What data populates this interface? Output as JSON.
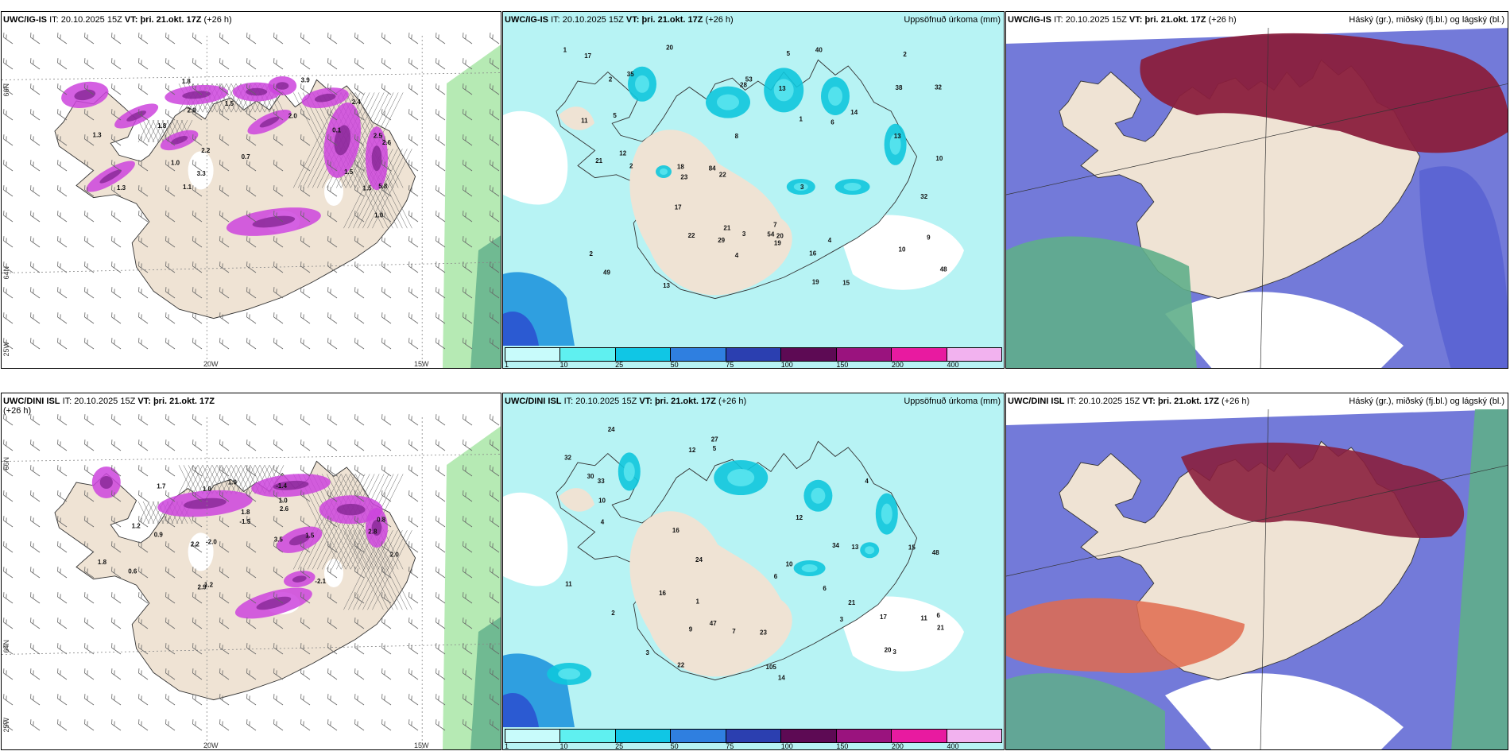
{
  "colors": {
    "land": "#efe3d4",
    "sea": "#b7f3f4",
    "coast": "#333333",
    "magenta": "#cc44dd",
    "magenta_dark": "#7a1f8a",
    "cyan_light": "#59e4ee",
    "cyan": "#10c6dd",
    "blue": "#5a63d2",
    "maroon": "#8a1f3d",
    "green": "#5fae8a",
    "light_green": "#b6eab4",
    "orange": "#e06b4e"
  },
  "legend": {
    "colors": [
      "#c8fbfb",
      "#5ff0f0",
      "#10c6e5",
      "#2f7fe0",
      "#2b3fb0",
      "#5d0a54",
      "#9a137e",
      "#e81aa0",
      "#f2b2ef"
    ],
    "ticks": [
      "1",
      "10",
      "25",
      "50",
      "75",
      "100",
      "150",
      "200",
      "400"
    ]
  },
  "panels": [
    {
      "model": "UWC/IG-IS",
      "it_label": "IT:",
      "it": "20.10.2025 15Z",
      "vt_label": "VT: þri. 21.okt. 17Z",
      "lead": "(+26 h)",
      "right": "",
      "grid_labels": {
        "lat_top": "66N",
        "lat_bottom": "64N",
        "lon_left": "20W",
        "lon_right": "15W",
        "corner": "25W"
      },
      "values": [
        "2.9",
        "2.5",
        "2.0",
        "2.6",
        "2.2",
        "5.8",
        "3.3",
        "3.9",
        "1.5",
        "2.4",
        "1.8",
        "1.5",
        "0.1",
        "1.1",
        "1.3",
        "0.7",
        "1.0",
        "1.3",
        "1.8",
        "1.5",
        "1.0"
      ]
    },
    {
      "model": "UWC/IG-IS",
      "it_label": "IT:",
      "it": "20.10.2025 15Z",
      "vt_label": "VT: þri. 21.okt. 17Z",
      "lead": "(+26 h)",
      "right": "Uppsöfnuð úrkoma (mm)",
      "values": [
        "10",
        "9",
        "7",
        "5",
        "4",
        "6",
        "15",
        "48",
        "35",
        "16",
        "12",
        "18",
        "40",
        "54",
        "21",
        "49",
        "28",
        "38",
        "22",
        "20",
        "32",
        "19",
        "17",
        "17",
        "29",
        "13",
        "53",
        "32",
        "23",
        "19",
        "20",
        "10",
        "1",
        "3",
        "2",
        "1",
        "8",
        "13",
        "11",
        "84",
        "13",
        "21",
        "14",
        "22",
        "4",
        "2",
        "5",
        "3",
        "2",
        "2"
      ]
    },
    {
      "model": "UWC/IG-IS",
      "it_label": "IT:",
      "it": "20.10.2025 15Z",
      "vt_label": "VT: þri. 21.okt. 17Z",
      "lead": "(+26 h)",
      "right": "Háský (gr.), miðský (fj.bl.) og lágský (bl.)"
    },
    {
      "model": "UWC/DINI ISL",
      "it_label": "IT:",
      "it": "20.10.2025 15Z",
      "vt_label": "VT: þri. 21.okt. 17Z",
      "lead": "(+26 h)",
      "right": "",
      "grid_labels": {
        "lat_top": "66N",
        "lat_bottom": "64N",
        "lon_left": "20W",
        "lon_right": "15W",
        "corner": "25W"
      },
      "values": [
        "2.9",
        "1.8",
        "2.8",
        "0.8",
        "2.2",
        "1.5",
        "1.0",
        "-2.0",
        "-1.5",
        "-2.1",
        "2.0",
        "3.5",
        "2.6",
        "1.9",
        "1.0",
        "-1.4",
        "1.2",
        "0.6",
        "1.8",
        "1.2",
        "0.9",
        "1.7"
      ]
    },
    {
      "model": "UWC/DINI ISL",
      "it_label": "IT:",
      "it": "20.10.2025 15Z",
      "vt_label": "VT: þri. 21.okt. 17Z",
      "lead": "(+26 h)",
      "right": "Uppsöfnuð úrkoma (mm)",
      "values": [
        "10",
        "11",
        "6",
        "4",
        "5",
        "6",
        "33",
        "30",
        "47",
        "20",
        "16",
        "24",
        "24",
        "27",
        "23",
        "48",
        "34",
        "15",
        "32",
        "14",
        "12",
        "17",
        "22",
        "21",
        "21",
        "16",
        "12",
        "10",
        "13",
        "11",
        "3",
        "2",
        "1",
        "7",
        "3",
        "6",
        "4",
        "3",
        "9",
        "105"
      ]
    },
    {
      "model": "UWC/DINI ISL",
      "it_label": "IT:",
      "it": "20.10.2025 15Z",
      "vt_label": "VT: þri. 21.okt. 17Z",
      "lead": "(+26 h)",
      "right": "Háský (gr.), miðský (fj.bl.) og lágský (bl.)"
    }
  ]
}
